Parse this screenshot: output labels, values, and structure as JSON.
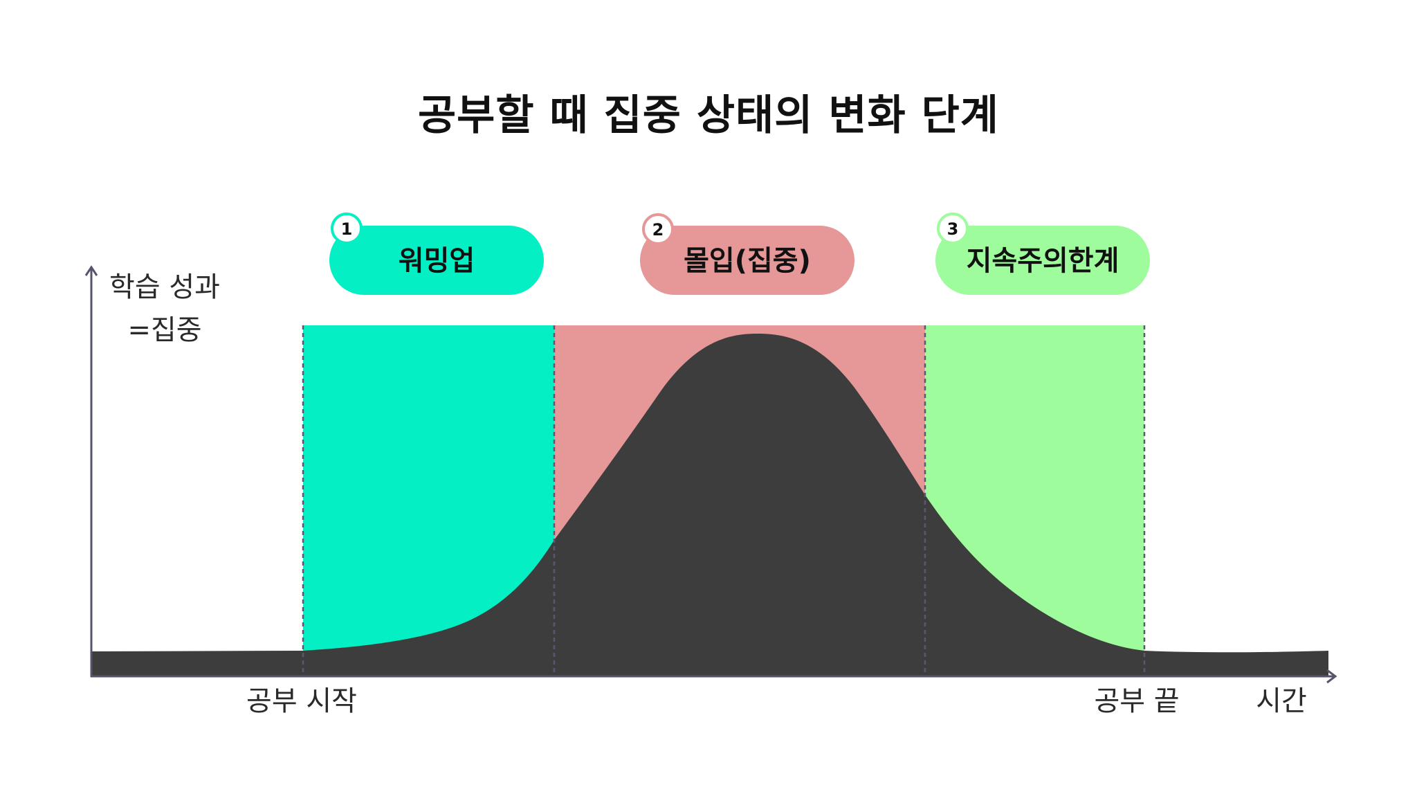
{
  "title": "공부할 때 집중 상태의 변화 단계",
  "y_axis": {
    "label_line1": "학습 성과",
    "label_line2": "=집중"
  },
  "x_axis": {
    "label": "시간",
    "start_label": "공부 시작",
    "end_label": "공부 끝"
  },
  "phases": [
    {
      "number": "1",
      "label": "워밍업",
      "color": "#05EFC5"
    },
    {
      "number": "2",
      "label": "몰입(집중)",
      "color": "#E69797"
    },
    {
      "number": "3",
      "label": "지속주의한계",
      "color": "#9EFC9C"
    }
  ],
  "colors": {
    "curve": "#3d3d3d",
    "axis": "#55546a",
    "divider": "#5a5870",
    "background": "#ffffff"
  }
}
